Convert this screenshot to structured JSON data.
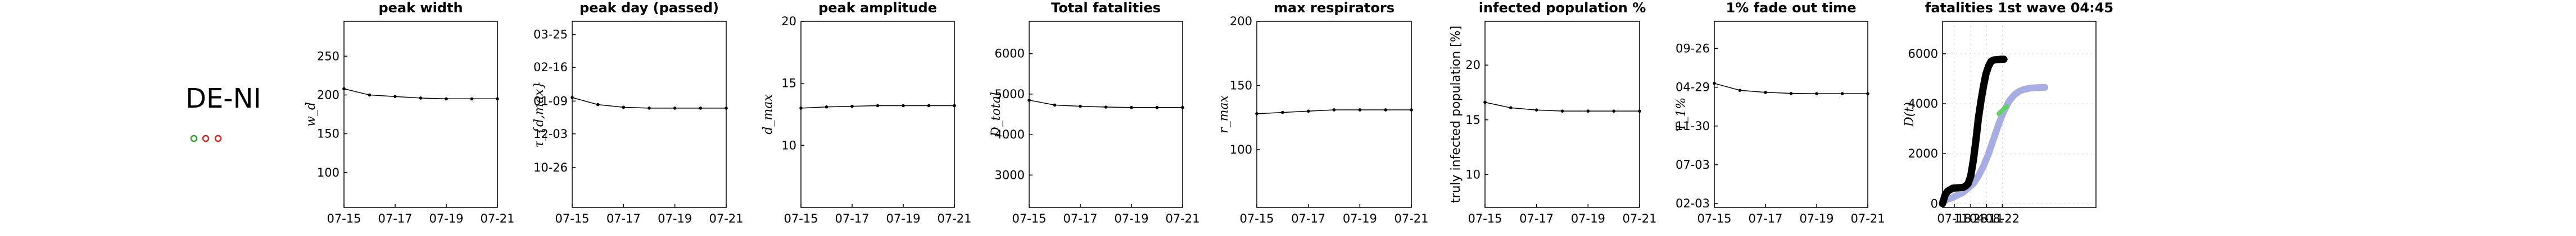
{
  "region": {
    "label": "DE-NI",
    "markers": [
      {
        "name": "green-circle",
        "color": "#2ca02c"
      },
      {
        "name": "red-circle-1",
        "color": "#d62728"
      },
      {
        "name": "red-circle-2",
        "color": "#d62728"
      }
    ]
  },
  "chart_data": [
    {
      "type": "line",
      "title": "peak width",
      "ylabel": "w_d",
      "x": [
        "07-15",
        "07-16",
        "07-17",
        "07-18",
        "07-19",
        "07-20",
        "07-21"
      ],
      "xticks": [
        "07-15",
        "07-17",
        "07-19",
        "07-21"
      ],
      "yticks": [
        {
          "label": "100",
          "v": 100
        },
        {
          "label": "150",
          "v": 150
        },
        {
          "label": "200",
          "v": 200
        },
        {
          "label": "250",
          "v": 250
        }
      ],
      "ylim": [
        55,
        295
      ],
      "values": [
        208,
        200,
        198,
        196,
        195,
        195,
        195
      ]
    },
    {
      "type": "line",
      "title": "peak day (passed)",
      "ylabel": "τ_{d,max}",
      "x": [
        "07-15",
        "07-16",
        "07-17",
        "07-18",
        "07-19",
        "07-20",
        "07-21"
      ],
      "xticks": [
        "07-15",
        "07-17",
        "07-19",
        "07-21"
      ],
      "yticks": [
        {
          "label": "10-26",
          "v": 0
        },
        {
          "label": "12-03",
          "v": 38
        },
        {
          "label": "01-09",
          "v": 75
        },
        {
          "label": "02-16",
          "v": 113
        },
        {
          "label": "03-25",
          "v": 150
        }
      ],
      "ylim": [
        -45,
        165
      ],
      "values": [
        79,
        71,
        68,
        67,
        67,
        67,
        67
      ]
    },
    {
      "type": "line",
      "title": "peak amplitude",
      "ylabel": "d_max",
      "x": [
        "07-15",
        "07-16",
        "07-17",
        "07-18",
        "07-19",
        "07-20",
        "07-21"
      ],
      "xticks": [
        "07-15",
        "07-17",
        "07-19",
        "07-21"
      ],
      "yticks": [
        {
          "label": "10",
          "v": 10
        },
        {
          "label": "15",
          "v": 15
        },
        {
          "label": "20",
          "v": 20
        }
      ],
      "ylim": [
        5,
        20
      ],
      "values": [
        13.0,
        13.1,
        13.15,
        13.2,
        13.2,
        13.2,
        13.2
      ]
    },
    {
      "type": "line",
      "title": "Total fatalities",
      "ylabel": "D_total",
      "x": [
        "07-15",
        "07-16",
        "07-17",
        "07-18",
        "07-19",
        "07-20",
        "07-21"
      ],
      "xticks": [
        "07-15",
        "07-17",
        "07-19",
        "07-21"
      ],
      "yticks": [
        {
          "label": "3000",
          "v": 3000
        },
        {
          "label": "4000",
          "v": 4000
        },
        {
          "label": "5000",
          "v": 5000
        },
        {
          "label": "6000",
          "v": 6000
        }
      ],
      "ylim": [
        2200,
        6800
      ],
      "values": [
        4850,
        4730,
        4700,
        4680,
        4670,
        4670,
        4670
      ]
    },
    {
      "type": "line",
      "title": "max respirators",
      "ylabel": "r_max",
      "x": [
        "07-15",
        "07-16",
        "07-17",
        "07-18",
        "07-19",
        "07-20",
        "07-21"
      ],
      "xticks": [
        "07-15",
        "07-17",
        "07-19",
        "07-21"
      ],
      "yticks": [
        {
          "label": "100",
          "v": 100
        },
        {
          "label": "150",
          "v": 150
        },
        {
          "label": "200",
          "v": 200
        }
      ],
      "ylim": [
        55,
        200
      ],
      "values": [
        128,
        129,
        130,
        131,
        131,
        131,
        131
      ]
    },
    {
      "type": "line",
      "title": "infected population %",
      "ylabel": "truly infected population [%]",
      "x": [
        "07-15",
        "07-16",
        "07-17",
        "07-18",
        "07-19",
        "07-20",
        "07-21"
      ],
      "xticks": [
        "07-15",
        "07-17",
        "07-19",
        "07-21"
      ],
      "yticks": [
        {
          "label": "10",
          "v": 10
        },
        {
          "label": "15",
          "v": 15
        },
        {
          "label": "20",
          "v": 20
        }
      ],
      "ylim": [
        7,
        24
      ],
      "values": [
        16.6,
        16.1,
        15.9,
        15.8,
        15.8,
        15.8,
        15.8
      ]
    },
    {
      "type": "line",
      "title": "1% fade out time",
      "ylabel": "T_1%",
      "x": [
        "07-15",
        "07-16",
        "07-17",
        "07-18",
        "07-19",
        "07-20",
        "07-21"
      ],
      "xticks": [
        "07-15",
        "07-17",
        "07-19",
        "07-21"
      ],
      "yticks": [
        {
          "label": "02-03",
          "v": 0
        },
        {
          "label": "07-03",
          "v": 150
        },
        {
          "label": "11-30",
          "v": 300
        },
        {
          "label": "04-29",
          "v": 450
        },
        {
          "label": "09-26",
          "v": 600
        }
      ],
      "ylim": [
        -15,
        705
      ],
      "values": [
        465,
        438,
        430,
        426,
        425,
        425,
        425
      ]
    },
    {
      "type": "line",
      "title": "fatalities 1st wave 04:45",
      "ylabel": "D(t)",
      "xticks": [
        "07-18",
        "11-28",
        "04-11",
        "08-22"
      ],
      "yticks": [
        {
          "label": "0",
          "v": 0
        },
        {
          "label": "2000",
          "v": 2000
        },
        {
          "label": "4000",
          "v": 4000
        },
        {
          "label": "6000",
          "v": 6000
        }
      ],
      "ylim": [
        -150,
        7300
      ],
      "xlim": [
        0,
        300
      ],
      "xtick_positions": [
        23,
        55,
        86,
        117
      ],
      "series": [
        {
          "color": "#9da3e0",
          "x": [
            0,
            20,
            40,
            60,
            70,
            80,
            90,
            100,
            110,
            120,
            130,
            140,
            150,
            160,
            170,
            180,
            190,
            200
          ],
          "values": [
            100,
            250,
            450,
            800,
            1100,
            1500,
            2000,
            2600,
            3200,
            3700,
            4100,
            4350,
            4500,
            4580,
            4620,
            4640,
            4650,
            4655
          ]
        },
        {
          "color": "#000000",
          "x": [
            0,
            5,
            10,
            15,
            20,
            40,
            45,
            50,
            55,
            60,
            65,
            70,
            75,
            80,
            85,
            90,
            95,
            100,
            105,
            110,
            115,
            120
          ],
          "values": [
            0,
            350,
            500,
            560,
            620,
            650,
            700,
            800,
            1100,
            1700,
            2500,
            3400,
            4100,
            4700,
            5200,
            5500,
            5700,
            5750,
            5760,
            5770,
            5780,
            5780
          ]
        },
        {
          "color": "#5fd35f",
          "x": [
            110,
            125
          ],
          "values": [
            3600,
            3900
          ]
        }
      ]
    }
  ]
}
